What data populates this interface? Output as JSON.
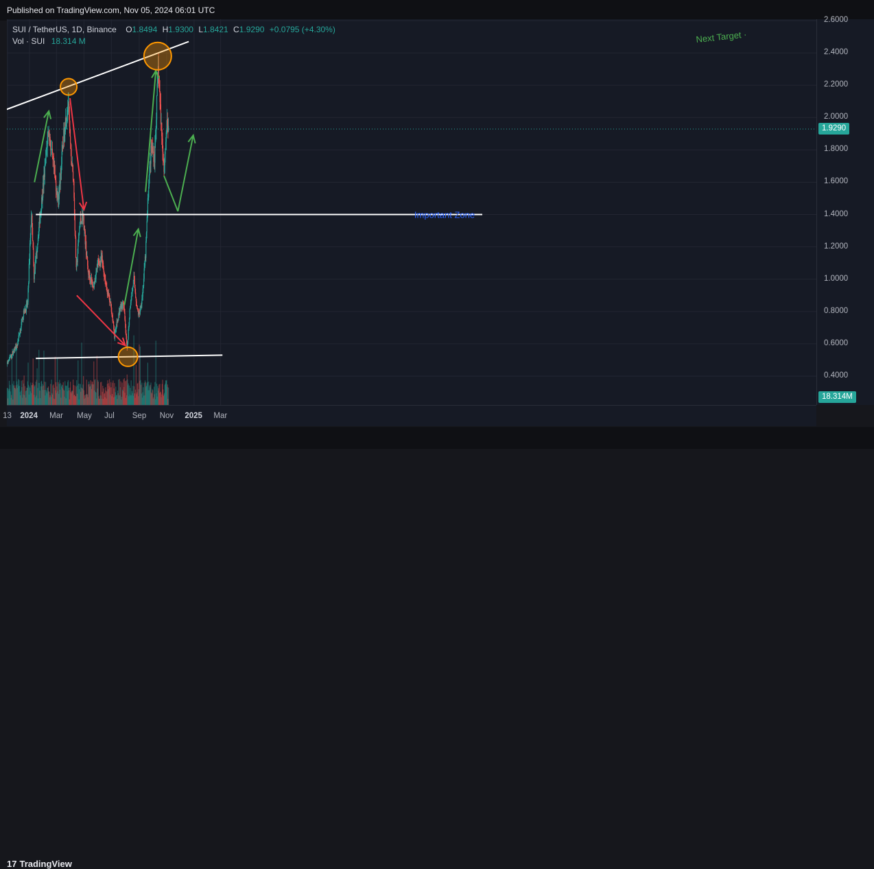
{
  "header": {
    "published": "Published on TradingView.com, Nov 05, 2024 06:01 UTC"
  },
  "legend": {
    "symbol": "SUI / TetherUS, 1D, Binance",
    "open_label": "O",
    "open": "1.8494",
    "high_label": "H",
    "high": "1.9300",
    "low_label": "L",
    "low": "1.8421",
    "close_label": "C",
    "close": "1.9290",
    "change": "+0.0795 (+4.30%)",
    "vol_label": "Vol · SUI",
    "vol": "18.314 M"
  },
  "footer": {
    "brand": "TradingView",
    "logo_icon": "tradingview-logo-icon"
  },
  "colors": {
    "bull": "#26a69a",
    "bear": "#ef5350",
    "background": "#161a25",
    "annotation_green": "#4caf50",
    "annotation_red": "#f23645",
    "zone_text": "#2962ff",
    "circle": "#ff9800"
  },
  "chart_data": {
    "type": "candlestick",
    "symbol": "SUI / TetherUS",
    "interval": "1D",
    "exchange": "Binance",
    "y_ticks": [
      "2.6000",
      "2.4000",
      "2.2000",
      "2.0000",
      "1.8000",
      "1.6000",
      "1.4000",
      "1.2000",
      "1.0000",
      "0.8000",
      "0.6000",
      "0.4000"
    ],
    "ylim": [
      0.25,
      2.63
    ],
    "x_ticks": [
      "13",
      "2024",
      "Mar",
      "May",
      "Jul",
      "Sep",
      "Nov",
      "2025",
      "Mar"
    ],
    "x_tick_dates": [
      "2023-11-13",
      "2024-01-01",
      "2024-03-01",
      "2024-05-01",
      "2024-07-01",
      "2024-09-01",
      "2024-11-01",
      "2025-01-01",
      "2025-03-01"
    ],
    "last_price": "1.9290",
    "last_volume": "18.314M",
    "price_anchors": [
      [
        "2023-11-05",
        0.45
      ],
      [
        "2023-11-20",
        0.52
      ],
      [
        "2023-12-05",
        0.6
      ],
      [
        "2023-12-18",
        0.78
      ],
      [
        "2023-12-28",
        0.85
      ],
      [
        "2024-01-02",
        1.22
      ],
      [
        "2024-01-06",
        1.42
      ],
      [
        "2024-01-11",
        1.02
      ],
      [
        "2024-01-23",
        1.35
      ],
      [
        "2024-02-03",
        1.65
      ],
      [
        "2024-02-12",
        1.93
      ],
      [
        "2024-02-22",
        1.72
      ],
      [
        "2024-03-05",
        1.48
      ],
      [
        "2024-03-12",
        1.72
      ],
      [
        "2024-03-18",
        1.92
      ],
      [
        "2024-03-27",
        2.1
      ],
      [
        "2024-04-01",
        1.8
      ],
      [
        "2024-04-08",
        1.6
      ],
      [
        "2024-04-14",
        1.05
      ],
      [
        "2024-04-22",
        1.35
      ],
      [
        "2024-04-29",
        1.4
      ],
      [
        "2024-05-10",
        1.05
      ],
      [
        "2024-05-22",
        0.95
      ],
      [
        "2024-06-01",
        1.1
      ],
      [
        "2024-06-10",
        1.12
      ],
      [
        "2024-06-20",
        0.95
      ],
      [
        "2024-07-01",
        0.82
      ],
      [
        "2024-07-08",
        0.65
      ],
      [
        "2024-07-20",
        0.82
      ],
      [
        "2024-07-28",
        0.85
      ],
      [
        "2024-08-05",
        0.56
      ],
      [
        "2024-08-12",
        0.85
      ],
      [
        "2024-08-20",
        1.0
      ],
      [
        "2024-08-28",
        0.8
      ],
      [
        "2024-09-01",
        0.78
      ],
      [
        "2024-09-08",
        0.9
      ],
      [
        "2024-09-15",
        1.15
      ],
      [
        "2024-09-22",
        1.6
      ],
      [
        "2024-09-28",
        1.82
      ],
      [
        "2024-10-05",
        1.75
      ],
      [
        "2024-10-13",
        2.3
      ],
      [
        "2024-10-20",
        1.95
      ],
      [
        "2024-10-26",
        1.68
      ],
      [
        "2024-11-01",
        1.95
      ],
      [
        "2024-11-05",
        1.93
      ]
    ],
    "annotations": {
      "upper_trendline": {
        "from": [
          "2023-11-01",
          2.04
        ],
        "to": [
          "2024-12-20",
          2.47
        ]
      },
      "important_zone": {
        "price": 1.4,
        "from": "2024-01-15",
        "to": "2025-03-05",
        "label": "Important Zone"
      },
      "support_line": {
        "from": [
          "2024-01-15",
          0.51
        ],
        "to": [
          "2025-03-05",
          0.53
        ]
      },
      "next_target_label": "Next Target ·",
      "circles": [
        {
          "at": [
            "2024-03-28",
            2.19
          ]
        },
        {
          "at": [
            "2024-10-12",
            2.38
          ]
        },
        {
          "at": [
            "2024-08-07",
            0.52
          ]
        }
      ],
      "green_arrows": [
        {
          "from": [
            "2024-01-12",
            1.6
          ],
          "to": [
            "2024-02-13",
            2.04
          ]
        },
        {
          "from": [
            "2024-07-30",
            0.84
          ],
          "to": [
            "2024-08-30",
            1.31
          ]
        },
        {
          "from": [
            "2024-09-15",
            1.54
          ],
          "to": [
            "2024-10-08",
            2.29
          ]
        },
        {
          "from": [
            "2024-10-26",
            1.64
          ],
          "to": [
            "2024-11-26",
            1.42
          ],
          "head": false
        },
        {
          "from": [
            "2024-11-26",
            1.42
          ],
          "to": [
            "2024-12-30",
            1.89
          ]
        }
      ],
      "red_arrows": [
        {
          "from": [
            "2024-03-31",
            2.12
          ],
          "to": [
            "2024-05-01",
            1.43
          ]
        },
        {
          "from": [
            "2024-04-15",
            0.9
          ],
          "to": [
            "2024-08-01",
            0.59
          ]
        }
      ]
    }
  }
}
